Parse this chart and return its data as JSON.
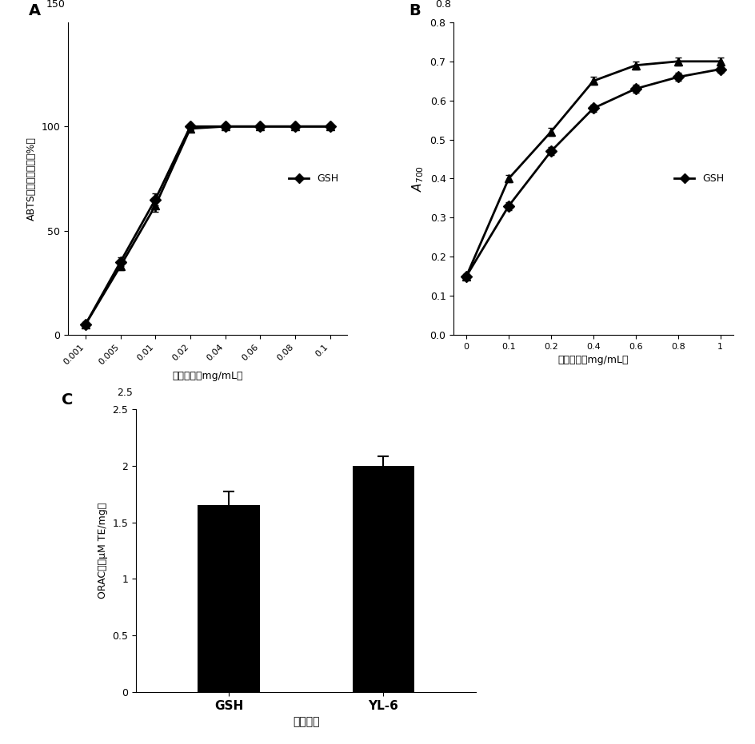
{
  "panel_A": {
    "label": "A",
    "x_indices": [
      0,
      1,
      2,
      3,
      4,
      5,
      6,
      7
    ],
    "x_labels": [
      "0.001",
      "0.005",
      "0.01",
      "0.02",
      "0.04",
      "0.06",
      "0.08",
      "0.1"
    ],
    "GSH_y": [
      5,
      35,
      65,
      100,
      100,
      100,
      100,
      100
    ],
    "GSH_err": [
      1,
      2,
      3,
      1,
      1,
      1,
      1,
      1
    ],
    "YL6_y": [
      5,
      33,
      62,
      99,
      100,
      100,
      100,
      100
    ],
    "YL6_err": [
      1,
      2,
      3,
      1,
      1,
      1,
      1,
      1
    ],
    "ylabel": "ABTS自由基清除率（%）",
    "xlabel": "多肽浓度（mg/mL）",
    "ylim": [
      0,
      150
    ],
    "yticks": [
      0,
      50,
      100
    ],
    "legend_label": "GSH"
  },
  "panel_B": {
    "label": "B",
    "x_indices": [
      0,
      1,
      2,
      3,
      4,
      5,
      6
    ],
    "x_labels": [
      "0",
      "0.1",
      "0.2",
      "0.4",
      "0.6",
      "0.8",
      "1"
    ],
    "GSH_y": [
      0.15,
      0.33,
      0.47,
      0.58,
      0.63,
      0.66,
      0.68
    ],
    "GSH_err": [
      0.005,
      0.01,
      0.01,
      0.01,
      0.01,
      0.01,
      0.01
    ],
    "YL6_y": [
      0.15,
      0.4,
      0.52,
      0.65,
      0.69,
      0.7,
      0.7
    ],
    "YL6_err": [
      0.005,
      0.01,
      0.01,
      0.01,
      0.01,
      0.01,
      0.01
    ],
    "ylabel": "A700",
    "xlabel": "多肽浓度（mg/mL）",
    "ylim": [
      0,
      0.8
    ],
    "yticks": [
      0,
      0.1,
      0.2,
      0.3,
      0.4,
      0.5,
      0.6,
      0.7,
      0.8
    ],
    "legend_label": "GSH"
  },
  "panel_C": {
    "label": "C",
    "categories": [
      "GSH",
      "YL-6"
    ],
    "values": [
      1.65,
      2.0
    ],
    "errors": [
      0.12,
      0.08
    ],
    "ylabel": "ORAC值（μM TE/mg）",
    "xlabel": "多肽样品",
    "ylim": [
      0,
      2.5
    ],
    "yticks": [
      0,
      0.5,
      1.0,
      1.5,
      2.0,
      2.5
    ],
    "bar_color": "#000000"
  },
  "line_color": "#000000",
  "marker_GSH": "D",
  "marker_YL6": "^",
  "markersize": 7,
  "linewidth": 2
}
